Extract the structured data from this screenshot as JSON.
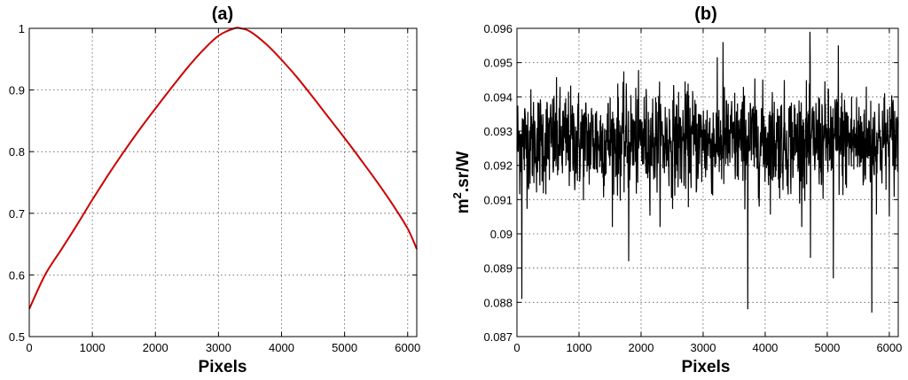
{
  "chart_data": [
    {
      "type": "line",
      "panel_label": "(a)",
      "xlabel": "Pixels",
      "ylabel": "",
      "xlim": [
        0,
        6144
      ],
      "ylim": [
        0.5,
        1.0
      ],
      "xticks": [
        0,
        1000,
        2000,
        3000,
        4000,
        5000,
        6000
      ],
      "yticks": [
        0.5,
        0.6,
        0.7,
        0.8,
        0.9,
        1.0
      ],
      "ytick_labels": [
        "0.5",
        "0.6",
        "0.7",
        "0.8",
        "0.9",
        "1"
      ],
      "grid": true,
      "line_color": "#cc0000",
      "x": [
        0,
        250,
        500,
        750,
        1000,
        1250,
        1500,
        1750,
        2000,
        2250,
        2500,
        2750,
        3000,
        3250,
        3350,
        3500,
        3750,
        4000,
        4250,
        4500,
        4750,
        5000,
        5250,
        5500,
        5750,
        6000,
        6144
      ],
      "values": [
        0.545,
        0.6,
        0.64,
        0.68,
        0.722,
        0.762,
        0.8,
        0.836,
        0.87,
        0.903,
        0.935,
        0.964,
        0.988,
        1.0,
        1.0,
        0.995,
        0.975,
        0.949,
        0.92,
        0.888,
        0.855,
        0.822,
        0.788,
        0.753,
        0.716,
        0.675,
        0.642
      ]
    },
    {
      "type": "line",
      "panel_label": "(b)",
      "xlabel": "Pixels",
      "ylabel_main": "m",
      "ylabel_sup": "2",
      "ylabel_rest": ".sr/W",
      "xlim": [
        0,
        6144
      ],
      "ylim": [
        0.087,
        0.096
      ],
      "xticks": [
        0,
        1000,
        2000,
        3000,
        4000,
        5000,
        6000
      ],
      "yticks": [
        0.087,
        0.088,
        0.089,
        0.09,
        0.091,
        0.092,
        0.093,
        0.094,
        0.095,
        0.096
      ],
      "ytick_labels": [
        "0.087",
        "0.088",
        "0.089",
        "0.09",
        "0.091",
        "0.092",
        "0.093",
        "0.094",
        "0.095",
        "0.096"
      ],
      "grid": true,
      "line_color": "#000000",
      "noise_mean": 0.0927,
      "noise_band": [
        0.0905,
        0.095
      ],
      "notable_dips": [
        {
          "x": 80,
          "y": 0.0881
        },
        {
          "x": 1800,
          "y": 0.0892
        },
        {
          "x": 3720,
          "y": 0.0878
        },
        {
          "x": 4730,
          "y": 0.0893
        },
        {
          "x": 5100,
          "y": 0.0887
        },
        {
          "x": 5720,
          "y": 0.0877
        }
      ],
      "notable_peaks": [
        {
          "x": 3320,
          "y": 0.0956
        },
        {
          "x": 4720,
          "y": 0.0959
        },
        {
          "x": 5180,
          "y": 0.0955
        }
      ]
    }
  ]
}
